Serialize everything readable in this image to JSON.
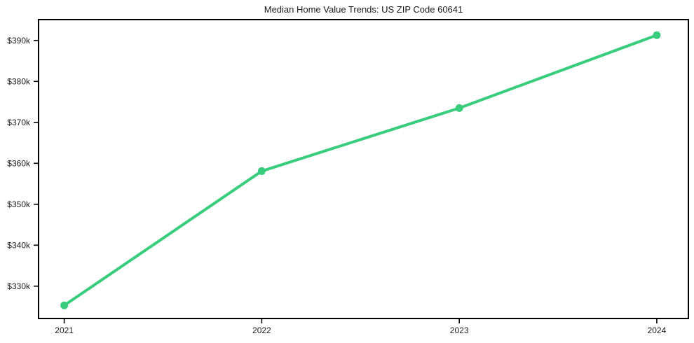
{
  "chart_data": {
    "type": "line",
    "title": "Median Home Value Trends: US ZIP Code 60641",
    "x": [
      2021,
      2022,
      2023,
      2024
    ],
    "values": [
      325300,
      358100,
      373500,
      391300
    ],
    "x_ticks": [
      {
        "value": 2021,
        "label": "2021"
      },
      {
        "value": 2022,
        "label": "2022"
      },
      {
        "value": 2023,
        "label": "2023"
      },
      {
        "value": 2024,
        "label": "2024"
      }
    ],
    "y_ticks": [
      {
        "value": 330000,
        "label": "$330k"
      },
      {
        "value": 340000,
        "label": "$340k"
      },
      {
        "value": 350000,
        "label": "$350k"
      },
      {
        "value": 360000,
        "label": "$360k"
      },
      {
        "value": 370000,
        "label": "$370k"
      },
      {
        "value": 380000,
        "label": "$380k"
      },
      {
        "value": 390000,
        "label": "$390k"
      }
    ],
    "xlim": [
      2020.87,
      2024.16
    ],
    "ylim": [
      322100,
      395100
    ],
    "grid": false,
    "legend": "none",
    "xlabel": "",
    "ylabel": "",
    "line_color": "#37cd7c",
    "axis_color": "#000000",
    "marker": "circle"
  }
}
